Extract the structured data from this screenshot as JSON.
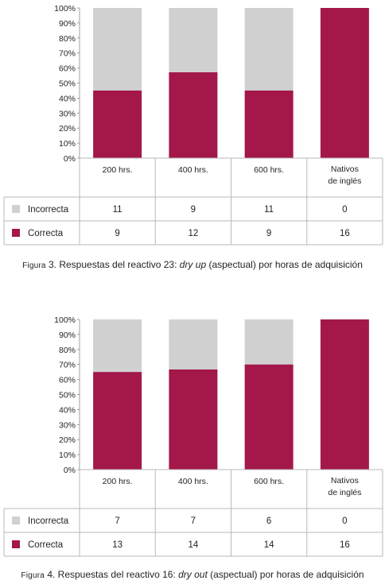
{
  "legend_labels": [
    "Incorrecta",
    "Correcta"
  ],
  "colors": {
    "correcta": "#a3174a",
    "incorrecta": "#d0d0d0"
  },
  "y_ticks": [
    "0%",
    "10%",
    "20%",
    "30%",
    "40%",
    "50%",
    "60%",
    "70%",
    "80%",
    "90%",
    "100%"
  ],
  "figures": [
    {
      "caption": {
        "label": "Figura",
        "number": "3.",
        "text_before": "Respuestas del reactivo 23: ",
        "term": "dry up",
        "text_after": " (aspectual) por horas de adquisición"
      }
    },
    {
      "caption": {
        "label": "Figura",
        "number": "4.",
        "text_before": "Respuestas del reactivo 16: ",
        "term": "dry out",
        "text_after": " (aspectual) por horas de adquisición"
      }
    }
  ],
  "chart_data": [
    {
      "type": "bar",
      "stacked": true,
      "percent": true,
      "categories": [
        "200 hrs.",
        "400 hrs.",
        "600 hrs.",
        "Nativos de inglés"
      ],
      "series": [
        {
          "name": "Incorrecta",
          "values": [
            11,
            9,
            11,
            0
          ]
        },
        {
          "name": "Correcta",
          "values": [
            9,
            12,
            9,
            16
          ]
        }
      ],
      "ylim": [
        0,
        100
      ],
      "legend": "table-left"
    },
    {
      "type": "bar",
      "stacked": true,
      "percent": true,
      "categories": [
        "200 hrs.",
        "400 hrs.",
        "600 hrs.",
        "Nativos de inglés"
      ],
      "series": [
        {
          "name": "Incorrecta",
          "values": [
            7,
            7,
            6,
            0
          ]
        },
        {
          "name": "Correcta",
          "values": [
            13,
            14,
            14,
            16
          ]
        }
      ],
      "ylim": [
        0,
        100
      ],
      "legend": "table-left"
    }
  ]
}
